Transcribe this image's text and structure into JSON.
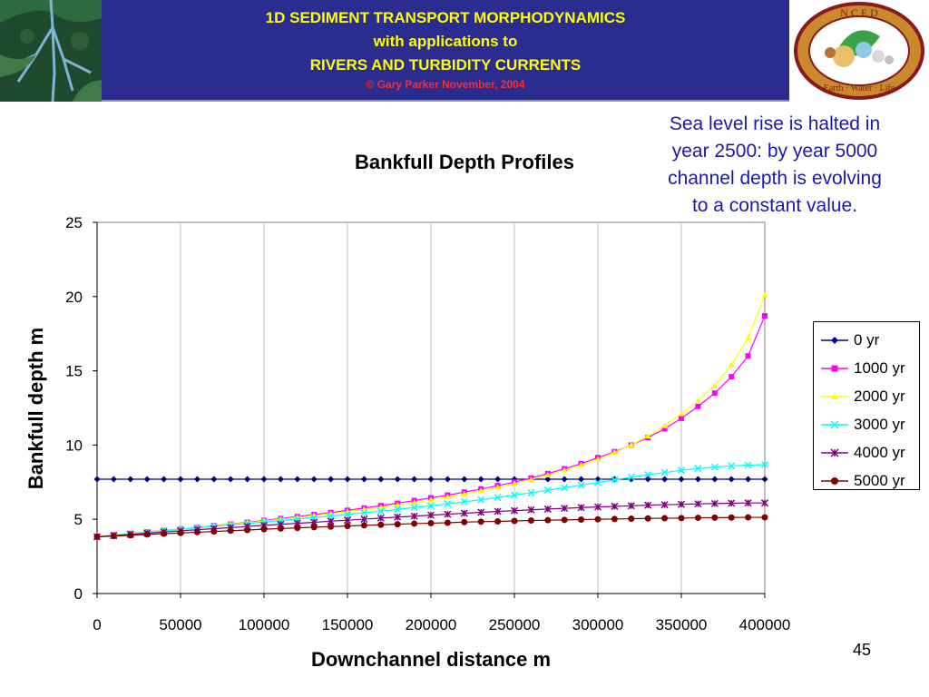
{
  "header": {
    "line1": "1D SEDIMENT TRANSPORT MORPHODYNAMICS",
    "line2": "with applications to",
    "line3": "RIVERS AND TURBIDITY CURRENTS",
    "line4": "© Gary Parker November, 2004"
  },
  "logo": {
    "text_top": "N C E D",
    "text_bottom": "Earth · Water · Life"
  },
  "annotation": {
    "line1": "Sea level rise is halted in",
    "line2": "year 2500: by year 5000",
    "line3": "channel depth is evolving",
    "line4": "to a constant value."
  },
  "page_number": "45",
  "colors": {
    "header_bg": "#2a2d8f",
    "header_text": "#ffff00",
    "copyright_text": "#ff2a2a",
    "annotation_text": "#1a1aa8"
  },
  "chart_data": {
    "type": "line",
    "title": "Bankfull Depth Profiles",
    "xlabel": "Downchannel distance m",
    "ylabel": "Bankfull depth m",
    "xlim": [
      0,
      400000
    ],
    "ylim": [
      0,
      25
    ],
    "x_ticks": [
      "0",
      "50000",
      "100000",
      "150000",
      "200000",
      "250000",
      "300000",
      "350000",
      "400000"
    ],
    "y_ticks": [
      "0",
      "5",
      "10",
      "15",
      "20",
      "25"
    ],
    "grid": "vertical",
    "legend_position": "right",
    "x": [
      0,
      10000,
      20000,
      30000,
      40000,
      50000,
      60000,
      70000,
      80000,
      90000,
      100000,
      110000,
      120000,
      130000,
      140000,
      150000,
      160000,
      170000,
      180000,
      190000,
      200000,
      210000,
      220000,
      230000,
      240000,
      250000,
      260000,
      270000,
      280000,
      290000,
      300000,
      310000,
      320000,
      330000,
      340000,
      350000,
      360000,
      370000,
      380000,
      390000,
      400000
    ],
    "series": [
      {
        "name": "0 yr",
        "color": "#000080",
        "marker": "diamond",
        "values": [
          7.7,
          7.7,
          7.7,
          7.7,
          7.7,
          7.7,
          7.7,
          7.7,
          7.7,
          7.7,
          7.7,
          7.7,
          7.7,
          7.7,
          7.7,
          7.7,
          7.7,
          7.7,
          7.7,
          7.7,
          7.7,
          7.7,
          7.7,
          7.7,
          7.7,
          7.7,
          7.7,
          7.7,
          7.7,
          7.7,
          7.7,
          7.7,
          7.7,
          7.7,
          7.7,
          7.7,
          7.7,
          7.7,
          7.7,
          7.7,
          7.7
        ]
      },
      {
        "name": "1000 yr",
        "color": "#ff00ff",
        "marker": "square",
        "values": [
          3.85,
          3.95,
          4.05,
          4.15,
          4.25,
          4.35,
          4.45,
          4.57,
          4.68,
          4.8,
          4.92,
          5.05,
          5.18,
          5.32,
          5.46,
          5.6,
          5.76,
          5.92,
          6.08,
          6.26,
          6.44,
          6.63,
          6.83,
          7.04,
          7.27,
          7.5,
          7.78,
          8.08,
          8.4,
          8.75,
          9.15,
          9.55,
          10.0,
          10.5,
          11.1,
          11.8,
          12.6,
          13.5,
          14.6,
          16.0,
          18.7
        ]
      },
      {
        "name": "2000 yr",
        "color": "#ffff00",
        "marker": "triangle",
        "values": [
          3.85,
          3.95,
          4.05,
          4.14,
          4.24,
          4.34,
          4.44,
          4.55,
          4.66,
          4.77,
          4.88,
          5.0,
          5.12,
          5.25,
          5.38,
          5.52,
          5.66,
          5.8,
          5.96,
          6.12,
          6.3,
          6.5,
          6.7,
          6.92,
          7.15,
          7.4,
          7.68,
          7.98,
          8.3,
          8.66,
          9.05,
          9.5,
          10.0,
          10.6,
          11.3,
          12.1,
          13.0,
          14.0,
          15.4,
          17.2,
          20.1
        ]
      },
      {
        "name": "3000 yr",
        "color": "#00ffff",
        "marker": "x",
        "values": [
          3.82,
          3.92,
          4.02,
          4.12,
          4.22,
          4.32,
          4.42,
          4.52,
          4.62,
          4.72,
          4.82,
          4.92,
          5.02,
          5.12,
          5.22,
          5.33,
          5.44,
          5.55,
          5.67,
          5.79,
          5.91,
          6.04,
          6.18,
          6.32,
          6.47,
          6.63,
          6.79,
          6.96,
          7.13,
          7.3,
          7.48,
          7.66,
          7.84,
          8.0,
          8.15,
          8.3,
          8.42,
          8.52,
          8.6,
          8.65,
          8.68
        ]
      },
      {
        "name": "4000 yr",
        "color": "#800080",
        "marker": "star",
        "values": [
          3.82,
          3.9,
          3.98,
          4.06,
          4.14,
          4.22,
          4.3,
          4.37,
          4.44,
          4.52,
          4.59,
          4.66,
          4.73,
          4.8,
          4.87,
          4.94,
          5.01,
          5.08,
          5.15,
          5.21,
          5.28,
          5.34,
          5.41,
          5.47,
          5.53,
          5.58,
          5.64,
          5.69,
          5.74,
          5.79,
          5.83,
          5.87,
          5.91,
          5.95,
          5.98,
          6.01,
          6.04,
          6.06,
          6.08,
          6.1,
          6.1
        ]
      },
      {
        "name": "5000 yr",
        "color": "#800000",
        "marker": "circle",
        "values": [
          3.82,
          3.87,
          3.92,
          3.98,
          4.03,
          4.08,
          4.13,
          4.18,
          4.23,
          4.28,
          4.33,
          4.38,
          4.42,
          4.47,
          4.51,
          4.55,
          4.59,
          4.63,
          4.67,
          4.71,
          4.74,
          4.77,
          4.81,
          4.84,
          4.86,
          4.89,
          4.92,
          4.94,
          4.96,
          4.98,
          5.0,
          5.02,
          5.04,
          5.06,
          5.07,
          5.08,
          5.1,
          5.11,
          5.12,
          5.13,
          5.13
        ]
      }
    ]
  }
}
